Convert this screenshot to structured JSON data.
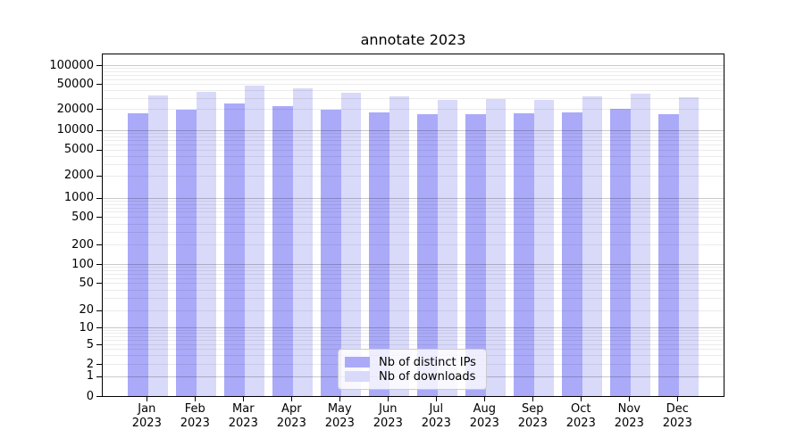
{
  "title": "annotate 2023",
  "chart_data": {
    "type": "bar",
    "title": "annotate 2023",
    "x_months": [
      "Jan",
      "Feb",
      "Mar",
      "Apr",
      "May",
      "Jun",
      "Jul",
      "Aug",
      "Sep",
      "Oct",
      "Nov",
      "Dec"
    ],
    "x_year": "2023",
    "categories": [
      "Jan 2023",
      "Feb 2023",
      "Mar 2023",
      "Apr 2023",
      "May 2023",
      "Jun 2023",
      "Jul 2023",
      "Aug 2023",
      "Sep 2023",
      "Oct 2023",
      "Nov 2023",
      "Dec 2023"
    ],
    "series": [
      {
        "name": "Nb of distinct IPs",
        "color": "#aaaaf9",
        "values": [
          17400,
          19600,
          24600,
          22300,
          19800,
          18000,
          16700,
          16700,
          17600,
          17900,
          20100,
          16700
        ]
      },
      {
        "name": "Nb of downloads",
        "color": "#d9d9fa",
        "values": [
          33000,
          37300,
          47700,
          42400,
          37000,
          32000,
          27700,
          29000,
          28300,
          31600,
          35200,
          30600
        ]
      }
    ],
    "y_ticks": [
      100000,
      50000,
      20000,
      10000,
      5000,
      2000,
      1000,
      500,
      200,
      100,
      50,
      20,
      10,
      5,
      2,
      1,
      0
    ],
    "ylim": [
      0,
      150000
    ],
    "yscale": "log-like (asinh, linear below 1, 0 at baseline)",
    "grid": "horizontal; darker lines at powers of 10, faint minor lines between",
    "legend_position": "lower center inside plot",
    "xlabel": "",
    "ylabel": ""
  }
}
